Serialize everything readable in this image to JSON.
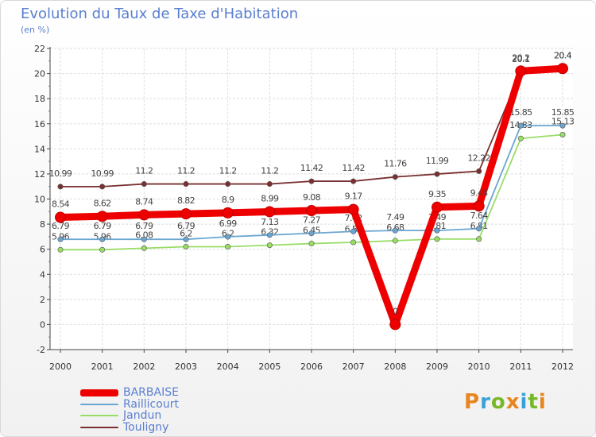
{
  "title": "Evolution du Taux de Taxe d'Habitation",
  "subtitle": "(en %)",
  "logo_text": "Proxiti",
  "chart_data": {
    "type": "line",
    "title": "Evolution du Taux de Taxe d'Habitation",
    "ylabel": "(en %)",
    "xlabel": "",
    "ylim": [
      -2,
      22
    ],
    "yticks": [
      -2,
      0,
      2,
      4,
      6,
      8,
      10,
      12,
      14,
      16,
      18,
      20,
      22
    ],
    "x": [
      "2000",
      "2001",
      "2002",
      "2003",
      "2004",
      "2005",
      "2006",
      "2007",
      "2008",
      "2009",
      "2010",
      "2011",
      "2012"
    ],
    "grid": true,
    "legend_position": "bottom-left",
    "series": [
      {
        "name": "BARBAISE",
        "color": "#ee0000",
        "values": [
          8.54,
          8.62,
          8.74,
          8.82,
          8.9,
          8.99,
          9.08,
          9.17,
          0,
          9.35,
          9.44,
          20.2,
          20.4
        ],
        "labels": [
          "8.54",
          "8.62",
          "8.74",
          "8.82",
          "8.9",
          "8.99",
          "9.08",
          "9.17",
          "0",
          "9.35",
          "9.44",
          "20.2",
          "20.4"
        ]
      },
      {
        "name": "Raillicourt",
        "color": "#6aa6d2",
        "values": [
          6.79,
          6.79,
          6.79,
          6.79,
          6.99,
          7.13,
          7.27,
          7.42,
          7.49,
          7.49,
          7.64,
          15.85,
          15.85
        ],
        "labels": [
          "6.79",
          "6.79",
          "6.79",
          "6.79",
          "6.99",
          "7.13",
          "7.27",
          "7.42",
          "7.49",
          "7.49",
          "7.64",
          "15.85",
          "15.85"
        ]
      },
      {
        "name": "Jandun",
        "color": "#99dd66",
        "values": [
          5.96,
          5.96,
          6.08,
          6.2,
          6.2,
          6.32,
          6.45,
          6.55,
          6.68,
          6.81,
          6.81,
          14.83,
          15.13
        ],
        "labels": [
          "5.96",
          "5.96",
          "6.08",
          "6.2",
          "6.2",
          "6.32",
          "6.45",
          "6.55",
          "6.68",
          "6.81",
          "6.81",
          "14.83",
          "15.13"
        ]
      },
      {
        "name": "Touligny",
        "color": "#7a3030",
        "values": [
          10.99,
          10.99,
          11.2,
          11.2,
          11.2,
          11.2,
          11.42,
          11.42,
          11.76,
          11.99,
          12.22,
          20.1,
          20.4
        ],
        "labels": [
          "10.99",
          "10.99",
          "11.2",
          "11.2",
          "11.2",
          "11.2",
          "11.42",
          "11.42",
          "11.76",
          "11.99",
          "12.22",
          "20.1",
          "20.4"
        ]
      }
    ]
  }
}
